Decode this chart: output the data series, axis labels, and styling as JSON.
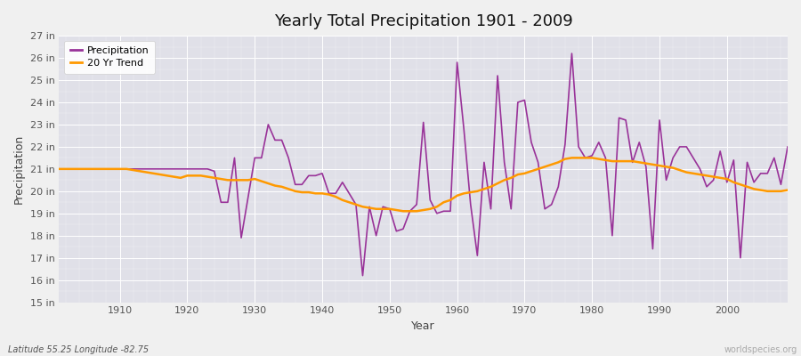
{
  "title": "Yearly Total Precipitation 1901 - 2009",
  "xlabel": "Year",
  "ylabel": "Precipitation",
  "bottom_left_label": "Latitude 55.25 Longitude -82.75",
  "bottom_right_label": "worldspecies.org",
  "bg_color": "#f0f0f0",
  "plot_bg_color": "#e0e0e8",
  "grid_color": "#ffffff",
  "line_color": "#993399",
  "trend_color": "#ff9900",
  "ylim": [
    15,
    27
  ],
  "yticks": [
    15,
    16,
    17,
    18,
    19,
    20,
    21,
    22,
    23,
    24,
    25,
    26,
    27
  ],
  "xticks": [
    1910,
    1920,
    1930,
    1940,
    1950,
    1960,
    1970,
    1980,
    1990,
    2000
  ],
  "years": [
    1901,
    1902,
    1903,
    1904,
    1905,
    1906,
    1907,
    1908,
    1909,
    1910,
    1911,
    1912,
    1913,
    1914,
    1915,
    1916,
    1917,
    1918,
    1919,
    1920,
    1921,
    1922,
    1923,
    1924,
    1925,
    1926,
    1927,
    1928,
    1929,
    1930,
    1931,
    1932,
    1933,
    1934,
    1935,
    1936,
    1937,
    1938,
    1939,
    1940,
    1941,
    1942,
    1943,
    1944,
    1945,
    1946,
    1947,
    1948,
    1949,
    1950,
    1951,
    1952,
    1953,
    1954,
    1955,
    1956,
    1957,
    1958,
    1959,
    1960,
    1961,
    1962,
    1963,
    1964,
    1965,
    1966,
    1967,
    1968,
    1969,
    1970,
    1971,
    1972,
    1973,
    1974,
    1975,
    1976,
    1977,
    1978,
    1979,
    1980,
    1981,
    1982,
    1983,
    1984,
    1985,
    1986,
    1987,
    1988,
    1989,
    1990,
    1991,
    1992,
    1993,
    1994,
    1995,
    1996,
    1997,
    1998,
    1999,
    2000,
    2001,
    2002,
    2003,
    2004,
    2005,
    2006,
    2007,
    2008,
    2009
  ],
  "precip": [
    21.0,
    21.0,
    21.0,
    21.0,
    21.0,
    21.0,
    21.0,
    21.0,
    21.0,
    21.0,
    21.0,
    21.0,
    21.0,
    21.0,
    21.0,
    21.0,
    21.0,
    21.0,
    21.0,
    21.0,
    21.0,
    21.0,
    21.0,
    20.9,
    19.5,
    19.5,
    21.5,
    17.9,
    19.7,
    21.5,
    21.5,
    23.0,
    22.3,
    22.3,
    21.5,
    20.3,
    20.3,
    20.7,
    20.7,
    20.8,
    19.9,
    19.9,
    20.4,
    19.9,
    19.4,
    16.2,
    19.3,
    18.0,
    19.3,
    19.2,
    18.2,
    18.3,
    19.1,
    19.4,
    23.1,
    19.6,
    19.0,
    19.1,
    19.1,
    25.8,
    22.8,
    19.4,
    17.1,
    21.3,
    19.2,
    25.2,
    21.3,
    19.2,
    24.0,
    24.1,
    22.2,
    21.3,
    19.2,
    19.4,
    20.2,
    22.1,
    26.2,
    22.0,
    21.5,
    21.6,
    22.2,
    21.5,
    18.0,
    23.3,
    23.2,
    21.3,
    22.2,
    21.1,
    17.4,
    23.2,
    20.5,
    21.5,
    22.0,
    22.0,
    21.5,
    21.0,
    20.2,
    20.5,
    21.8,
    20.4,
    21.4,
    17.0,
    21.3,
    20.4,
    20.8,
    20.8,
    21.5,
    20.3,
    22.0
  ],
  "trend": [
    21.0,
    21.0,
    21.0,
    21.0,
    21.0,
    21.0,
    21.0,
    21.0,
    21.0,
    21.0,
    21.0,
    20.95,
    20.9,
    20.85,
    20.8,
    20.75,
    20.7,
    20.65,
    20.6,
    20.7,
    20.7,
    20.7,
    20.65,
    20.6,
    20.55,
    20.5,
    20.5,
    20.5,
    20.5,
    20.55,
    20.45,
    20.35,
    20.25,
    20.2,
    20.1,
    20.0,
    19.95,
    19.95,
    19.9,
    19.9,
    19.85,
    19.75,
    19.6,
    19.5,
    19.4,
    19.3,
    19.25,
    19.2,
    19.2,
    19.2,
    19.15,
    19.1,
    19.1,
    19.1,
    19.15,
    19.2,
    19.3,
    19.5,
    19.6,
    19.8,
    19.9,
    19.95,
    20.0,
    20.1,
    20.2,
    20.35,
    20.5,
    20.6,
    20.75,
    20.8,
    20.9,
    21.0,
    21.1,
    21.2,
    21.3,
    21.45,
    21.5,
    21.5,
    21.5,
    21.5,
    21.45,
    21.4,
    21.35,
    21.35,
    21.35,
    21.35,
    21.3,
    21.25,
    21.2,
    21.15,
    21.1,
    21.05,
    20.95,
    20.85,
    20.8,
    20.75,
    20.7,
    20.65,
    20.6,
    20.55,
    20.4,
    20.3,
    20.2,
    20.1,
    20.05,
    20.0,
    20.0,
    20.0,
    20.05
  ]
}
